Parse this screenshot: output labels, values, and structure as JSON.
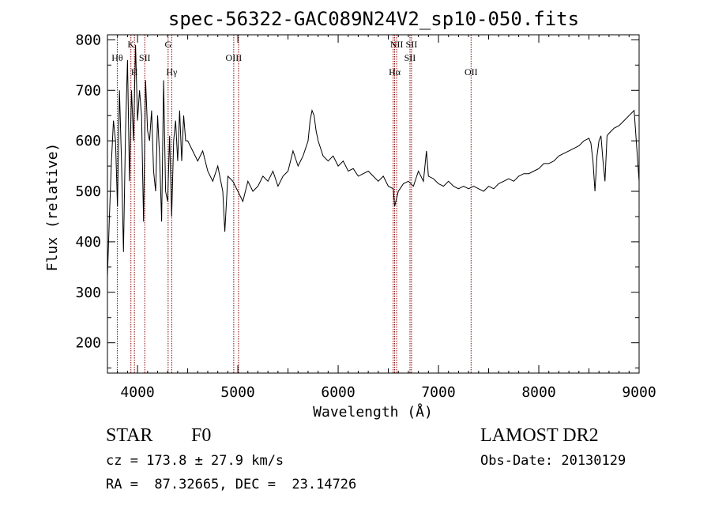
{
  "chart_data": {
    "type": "line",
    "title": "spec-56322-GAC089N24V2_sp10-050.fits",
    "xlabel": "Wavelength (Å)",
    "ylabel": "Flux (relative)",
    "xlim": [
      3700,
      9000
    ],
    "ylim": [
      140,
      810
    ],
    "xticks": [
      4000,
      5000,
      6000,
      7000,
      8000,
      9000
    ],
    "yticks": [
      200,
      300,
      400,
      500,
      600,
      700,
      800
    ],
    "grid": false,
    "line_color": "#000000",
    "marker_color": "#8b0000",
    "lines": [
      {
        "label": "Hθ",
        "wavelength": 3798,
        "row": 1
      },
      {
        "label": "K",
        "wavelength": 3934,
        "row": 0
      },
      {
        "label": "H",
        "wavelength": 3969,
        "row": 2
      },
      {
        "label": "SII",
        "wavelength": 4072,
        "row": 1
      },
      {
        "label": "G",
        "wavelength": 4305,
        "row": 0
      },
      {
        "label": "Hγ",
        "wavelength": 4341,
        "row": 2
      },
      {
        "label": "OIII",
        "wavelength": 4959,
        "row": 1
      },
      {
        "label": "OIII",
        "wavelength": 5007,
        "row": -1
      },
      {
        "label": "NII",
        "wavelength": 6548,
        "row": -1
      },
      {
        "label": "Hα",
        "wavelength": 6563,
        "row": 2
      },
      {
        "label": "NII",
        "wavelength": 6583,
        "row": 0
      },
      {
        "label": "SII",
        "wavelength": 6716,
        "row": 1
      },
      {
        "label": "SII",
        "wavelength": 6731,
        "row": 0
      },
      {
        "label": "OII",
        "wavelength": 7325,
        "row": 2
      }
    ],
    "series": [
      {
        "x": [
          3700,
          3720,
          3740,
          3760,
          3780,
          3800,
          3820,
          3840,
          3860,
          3880,
          3900,
          3920,
          3940,
          3960,
          3980,
          4000,
          4020,
          4040,
          4060,
          4080,
          4100,
          4120,
          4140,
          4160,
          4180,
          4200,
          4220,
          4240,
          4260,
          4280,
          4300,
          4320,
          4340,
          4360,
          4380,
          4400,
          4420,
          4440,
          4460,
          4480,
          4500,
          4550,
          4600,
          4650,
          4700,
          4750,
          4800,
          4850,
          4870,
          4900,
          4950,
          5000,
          5050,
          5100,
          5150,
          5200,
          5250,
          5300,
          5350,
          5400,
          5450,
          5500,
          5550,
          5600,
          5650,
          5700,
          5720,
          5740,
          5760,
          5780,
          5800,
          5850,
          5900,
          5950,
          6000,
          6050,
          6100,
          6150,
          6200,
          6250,
          6300,
          6350,
          6400,
          6450,
          6500,
          6550,
          6563,
          6600,
          6650,
          6700,
          6750,
          6800,
          6850,
          6880,
          6900,
          6950,
          7000,
          7050,
          7100,
          7150,
          7200,
          7250,
          7300,
          7350,
          7400,
          7450,
          7500,
          7550,
          7600,
          7650,
          7700,
          7750,
          7800,
          7850,
          7900,
          7950,
          8000,
          8050,
          8100,
          8150,
          8200,
          8250,
          8300,
          8350,
          8400,
          8450,
          8500,
          8520,
          8540,
          8560,
          8580,
          8600,
          8620,
          8640,
          8660,
          8680,
          8700,
          8750,
          8800,
          8850,
          8900,
          8950,
          9000
        ],
        "y": [
          330,
          450,
          560,
          640,
          600,
          470,
          700,
          560,
          380,
          620,
          760,
          520,
          700,
          600,
          790,
          640,
          700,
          650,
          440,
          720,
          620,
          600,
          660,
          540,
          500,
          650,
          570,
          440,
          720,
          500,
          480,
          610,
          450,
          600,
          640,
          560,
          660,
          560,
          650,
          600,
          600,
          580,
          560,
          580,
          540,
          520,
          550,
          500,
          420,
          530,
          520,
          500,
          480,
          520,
          500,
          510,
          530,
          520,
          540,
          510,
          530,
          540,
          580,
          550,
          570,
          600,
          640,
          660,
          650,
          620,
          600,
          570,
          560,
          570,
          550,
          560,
          540,
          545,
          530,
          535,
          540,
          530,
          520,
          530,
          510,
          505,
          470,
          500,
          515,
          520,
          510,
          540,
          520,
          580,
          530,
          525,
          515,
          510,
          520,
          510,
          505,
          510,
          505,
          510,
          505,
          500,
          510,
          505,
          515,
          520,
          525,
          520,
          530,
          535,
          535,
          540,
          545,
          555,
          555,
          560,
          570,
          575,
          580,
          585,
          590,
          600,
          605,
          595,
          560,
          500,
          570,
          600,
          610,
          560,
          520,
          610,
          615,
          625,
          630,
          640,
          650,
          660,
          520
        ]
      }
    ]
  },
  "footer": {
    "object_class": "STAR",
    "subclass": "F0",
    "survey": "LAMOST DR2",
    "redshift_line": "cz = 173.8 ± 27.9 km/s",
    "obs_date_line": "Obs-Date: 20130129",
    "coords_line": "RA =  87.32665, DEC =  23.14726"
  }
}
